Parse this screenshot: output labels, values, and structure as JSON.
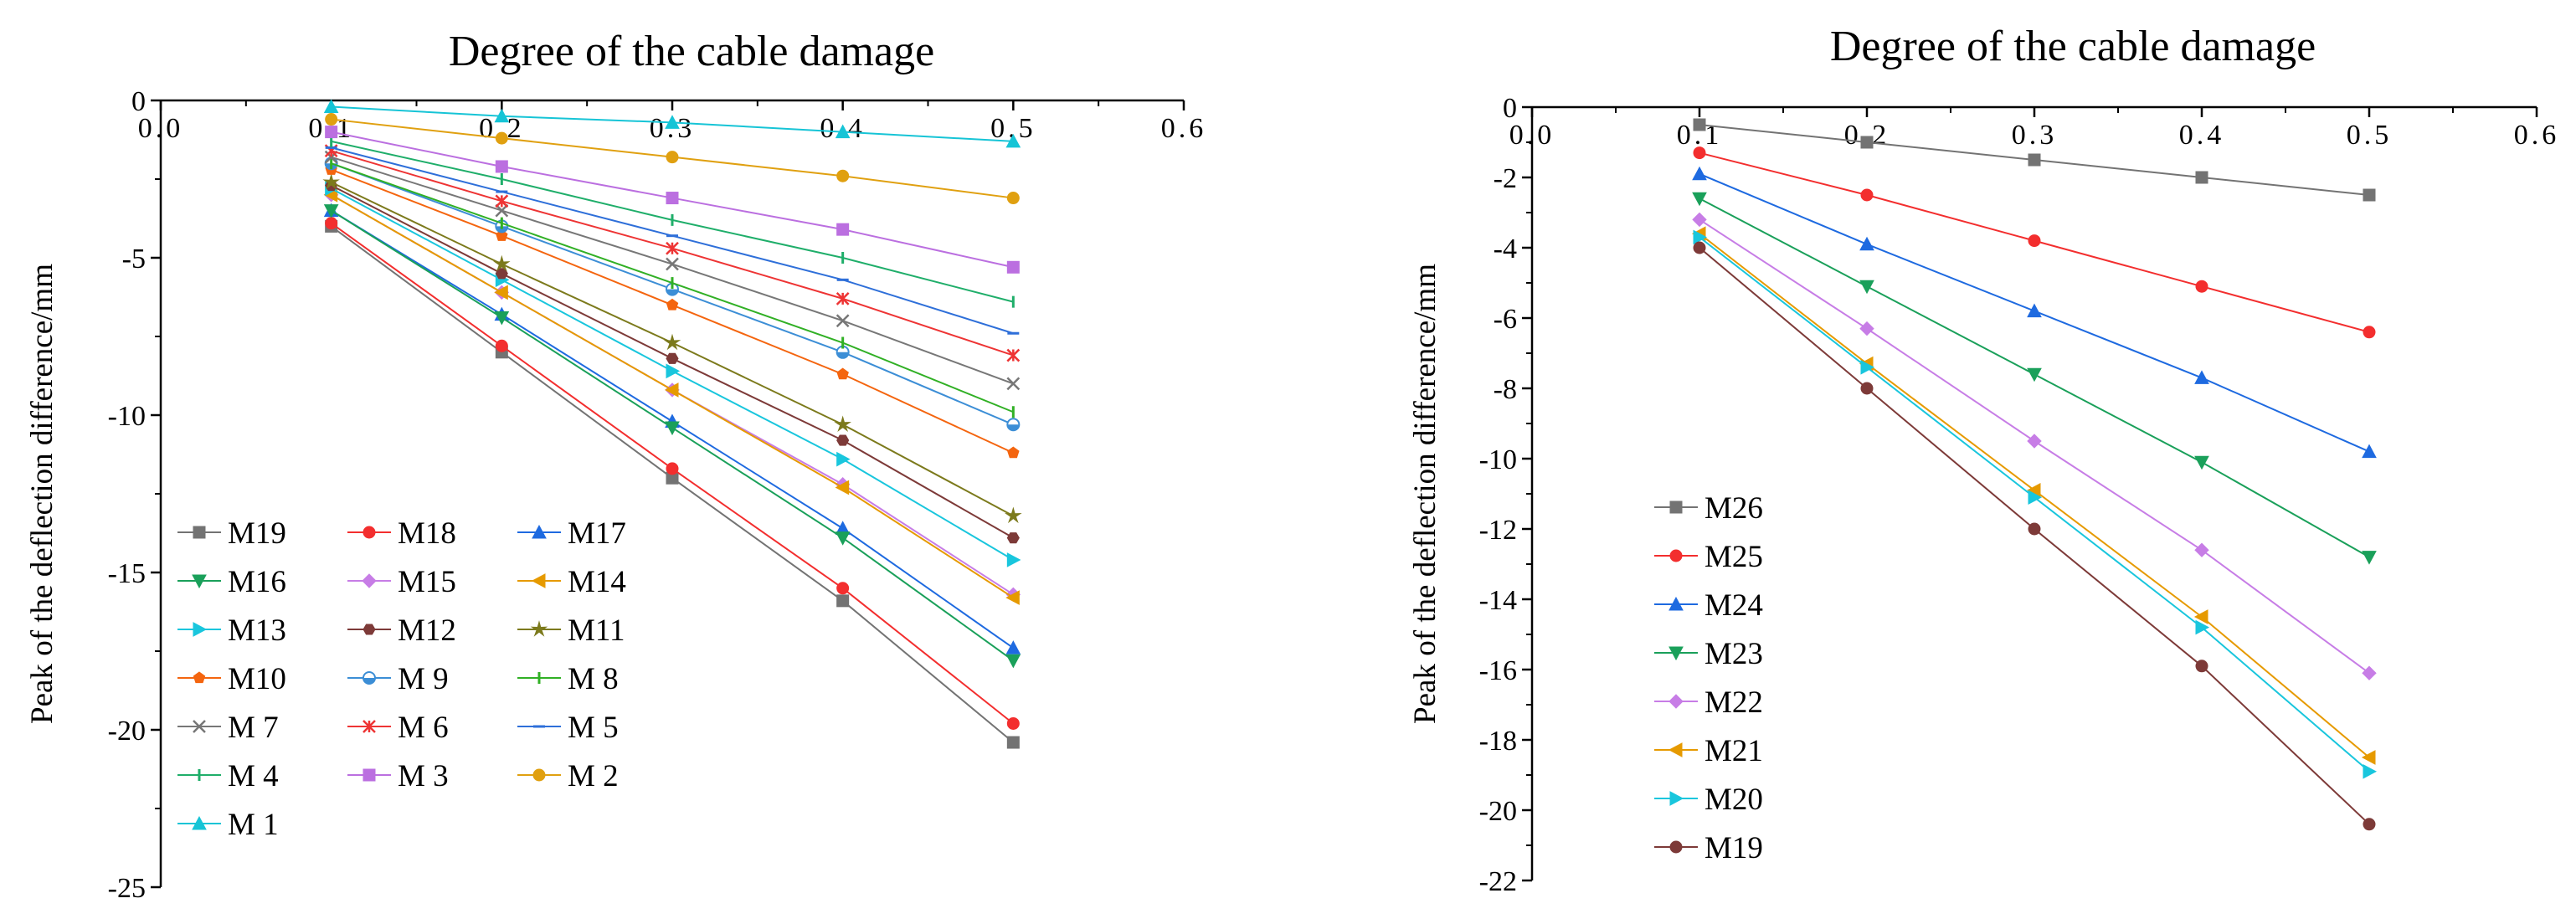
{
  "colors": {
    "M19": "#737373",
    "M18": "#f32e2e",
    "M17": "#1e6ae0",
    "M16": "#1aa05a",
    "M15": "#c77de6",
    "M14": "#e69a00",
    "M13": "#19c6dd",
    "M12": "#7d3a38",
    "M11": "#7c7a1c",
    "M10": "#f4650f",
    "M 9": "#3c8ed6",
    "M 8": "#31b025",
    "M 7": "#777777",
    "M 6": "#ee3434",
    "M 5": "#2e6fd9",
    "M 4": "#1fae6a",
    "M 3": "#bb6fe0",
    "M 2": "#e0a010",
    "M 1": "#16c4d6",
    "M26": "#737373",
    "M25": "#f32e2e",
    "M24": "#1e6ae0",
    "M23": "#1aa05a",
    "M22": "#c77de6",
    "M21": "#e69a00",
    "M20": "#19c6dd",
    "M19b": "#7d3a38"
  },
  "chart_data": [
    {
      "type": "line",
      "title": "Degree of the cable damage",
      "xlabel": "Degree of the cable damage",
      "ylabel": "Peak of the deflection difference/mm",
      "xlim": [
        0.0,
        0.6
      ],
      "ylim": [
        -25,
        0
      ],
      "xticks": [
        0.0,
        0.1,
        0.2,
        0.3,
        0.4,
        0.5,
        0.6
      ],
      "xtick_labels": [
        "0.0",
        "0.1",
        "0.2",
        "0.3",
        "0.4",
        "0.5",
        "0.6"
      ],
      "yticks": [
        0,
        -5,
        -10,
        -15,
        -20,
        -25
      ],
      "ytick_labels": [
        "0",
        "-5",
        "-10",
        "-15",
        "-20",
        "-25"
      ],
      "x": [
        0.1,
        0.2,
        0.3,
        0.4,
        0.5
      ],
      "legend_columns": 3,
      "legend_position": "lower-left",
      "series": [
        {
          "name": "M19",
          "color_key": "M19",
          "marker": "square",
          "values": [
            -4.0,
            -8.0,
            -12.0,
            -15.9,
            -20.4
          ]
        },
        {
          "name": "M18",
          "color_key": "M18",
          "marker": "circle",
          "values": [
            -3.9,
            -7.8,
            -11.7,
            -15.5,
            -19.8
          ]
        },
        {
          "name": "M17",
          "color_key": "M17",
          "marker": "triangle-up",
          "values": [
            -3.5,
            -6.8,
            -10.2,
            -13.6,
            -17.4
          ]
        },
        {
          "name": "M16",
          "color_key": "M16",
          "marker": "triangle-down",
          "values": [
            -3.5,
            -6.9,
            -10.4,
            -13.9,
            -17.8
          ]
        },
        {
          "name": "M15",
          "color_key": "M15",
          "marker": "diamond",
          "values": [
            -3.0,
            -6.1,
            -9.2,
            -12.2,
            -15.7
          ]
        },
        {
          "name": "M14",
          "color_key": "M14",
          "marker": "triangle-left",
          "values": [
            -3.0,
            -6.1,
            -9.2,
            -12.3,
            -15.8
          ]
        },
        {
          "name": "M13",
          "color_key": "M13",
          "marker": "triangle-right",
          "values": [
            -2.8,
            -5.7,
            -8.6,
            -11.4,
            -14.6
          ]
        },
        {
          "name": "M12",
          "color_key": "M12",
          "marker": "hexagon",
          "values": [
            -2.7,
            -5.5,
            -8.2,
            -10.8,
            -13.9
          ]
        },
        {
          "name": "M11",
          "color_key": "M11",
          "marker": "star",
          "values": [
            -2.6,
            -5.2,
            -7.7,
            -10.3,
            -13.2
          ]
        },
        {
          "name": "M10",
          "color_key": "M10",
          "marker": "pentagon",
          "values": [
            -2.2,
            -4.3,
            -6.5,
            -8.7,
            -11.2
          ]
        },
        {
          "name": "M 9",
          "color_key": "M 9",
          "marker": "half-circle",
          "values": [
            -2.0,
            -4.0,
            -6.0,
            -8.0,
            -10.3
          ]
        },
        {
          "name": "M 8",
          "color_key": "M 8",
          "marker": "vline",
          "values": [
            -2.0,
            -3.9,
            -5.8,
            -7.7,
            -9.9
          ]
        },
        {
          "name": "M 7",
          "color_key": "M 7",
          "marker": "x",
          "values": [
            -1.8,
            -3.5,
            -5.2,
            -7.0,
            -9.0
          ]
        },
        {
          "name": "M 6",
          "color_key": "M 6",
          "marker": "asterisk",
          "values": [
            -1.6,
            -3.2,
            -4.7,
            -6.3,
            -8.1
          ]
        },
        {
          "name": "M 5",
          "color_key": "M 5",
          "marker": "hline",
          "values": [
            -1.5,
            -2.9,
            -4.3,
            -5.7,
            -7.4
          ]
        },
        {
          "name": "M 4",
          "color_key": "M 4",
          "marker": "vline",
          "values": [
            -1.3,
            -2.5,
            -3.8,
            -5.0,
            -6.4
          ]
        },
        {
          "name": "M 3",
          "color_key": "M 3",
          "marker": "square",
          "values": [
            -1.0,
            -2.1,
            -3.1,
            -4.1,
            -5.3
          ]
        },
        {
          "name": "M 2",
          "color_key": "M 2",
          "marker": "circle",
          "values": [
            -0.6,
            -1.2,
            -1.8,
            -2.4,
            -3.1
          ]
        },
        {
          "name": "M 1",
          "color_key": "M 1",
          "marker": "triangle-up",
          "values": [
            -0.2,
            -0.5,
            -0.7,
            -1.0,
            -1.3
          ]
        }
      ]
    },
    {
      "type": "line",
      "title": "Degree of the cable damage",
      "xlabel": "Degree of the cable damage",
      "ylabel": "Peak of the deflection difference/mm",
      "xlim": [
        0.0,
        0.6
      ],
      "ylim": [
        -22,
        0
      ],
      "xticks": [
        0.0,
        0.1,
        0.2,
        0.3,
        0.4,
        0.5,
        0.6
      ],
      "xtick_labels": [
        "0.0",
        "0.1",
        "0.2",
        "0.3",
        "0.4",
        "0.5",
        "0.6"
      ],
      "yticks": [
        0,
        -2,
        -4,
        -6,
        -8,
        -10,
        -12,
        -14,
        -16,
        -18,
        -20,
        -22
      ],
      "ytick_labels": [
        "0",
        "-2",
        "-4",
        "-6",
        "-8",
        "-10",
        "-12",
        "-14",
        "-16",
        "-18",
        "-20",
        "-22"
      ],
      "x": [
        0.1,
        0.2,
        0.3,
        0.4,
        0.5
      ],
      "legend_columns": 1,
      "legend_position": "lower-left",
      "series": [
        {
          "name": "M26",
          "color_key": "M26",
          "marker": "square",
          "values": [
            -0.5,
            -1.0,
            -1.5,
            -2.0,
            -2.5
          ]
        },
        {
          "name": "M25",
          "color_key": "M25",
          "marker": "circle",
          "values": [
            -1.3,
            -2.5,
            -3.8,
            -5.1,
            -6.4
          ]
        },
        {
          "name": "M24",
          "color_key": "M24",
          "marker": "triangle-up",
          "values": [
            -1.9,
            -3.9,
            -5.8,
            -7.7,
            -9.8
          ]
        },
        {
          "name": "M23",
          "color_key": "M23",
          "marker": "triangle-down",
          "values": [
            -2.6,
            -5.1,
            -7.6,
            -10.1,
            -12.8
          ]
        },
        {
          "name": "M22",
          "color_key": "M22",
          "marker": "diamond",
          "values": [
            -3.2,
            -6.3,
            -9.5,
            -12.6,
            -16.1
          ]
        },
        {
          "name": "M21",
          "color_key": "M21",
          "marker": "triangle-left",
          "values": [
            -3.6,
            -7.3,
            -10.9,
            -14.5,
            -18.5
          ]
        },
        {
          "name": "M20",
          "color_key": "M20",
          "marker": "triangle-right",
          "values": [
            -3.7,
            -7.4,
            -11.1,
            -14.8,
            -18.9
          ]
        },
        {
          "name": "M19",
          "color_key": "M19b",
          "marker": "circle",
          "values": [
            -4.0,
            -8.0,
            -12.0,
            -15.9,
            -20.4
          ]
        }
      ]
    }
  ]
}
